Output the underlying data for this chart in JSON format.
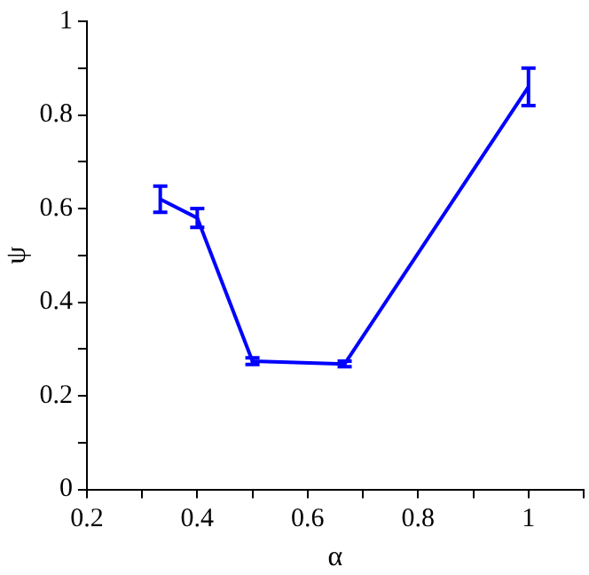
{
  "chart_data": {
    "type": "line",
    "xlabel": "α",
    "ylabel": "ψ",
    "x": [
      0.333,
      0.4,
      0.5,
      0.667,
      1
    ],
    "series": [
      {
        "color": "#0000ff",
        "values": [
          0.62,
          0.58,
          0.274,
          0.268,
          0.86
        ],
        "errors": [
          0.028,
          0.02,
          0.007,
          0.006,
          0.04
        ]
      }
    ],
    "xlim": [
      0.2,
      1.1
    ],
    "xticks": [
      0.2,
      {
        "value": 0.3,
        "label": null
      },
      0.4,
      {
        "value": 0.5,
        "label": null
      },
      0.6,
      {
        "value": 0.7,
        "label": null
      },
      0.8,
      {
        "value": 0.9,
        "label": null
      },
      1,
      {
        "value": 1.1,
        "label": null
      }
    ],
    "ylim": [
      0,
      1
    ],
    "yticks": [
      0,
      {
        "value": 0.1,
        "label": null
      },
      0.2,
      {
        "value": 0.3,
        "label": null
      },
      0.4,
      {
        "value": 0.5,
        "label": null
      },
      0.6,
      {
        "value": 0.7,
        "label": null
      },
      0.8,
      {
        "value": 0.9,
        "label": null
      },
      1
    ],
    "grid": false,
    "legend": false,
    "marker": "none",
    "line_style": "solid"
  }
}
